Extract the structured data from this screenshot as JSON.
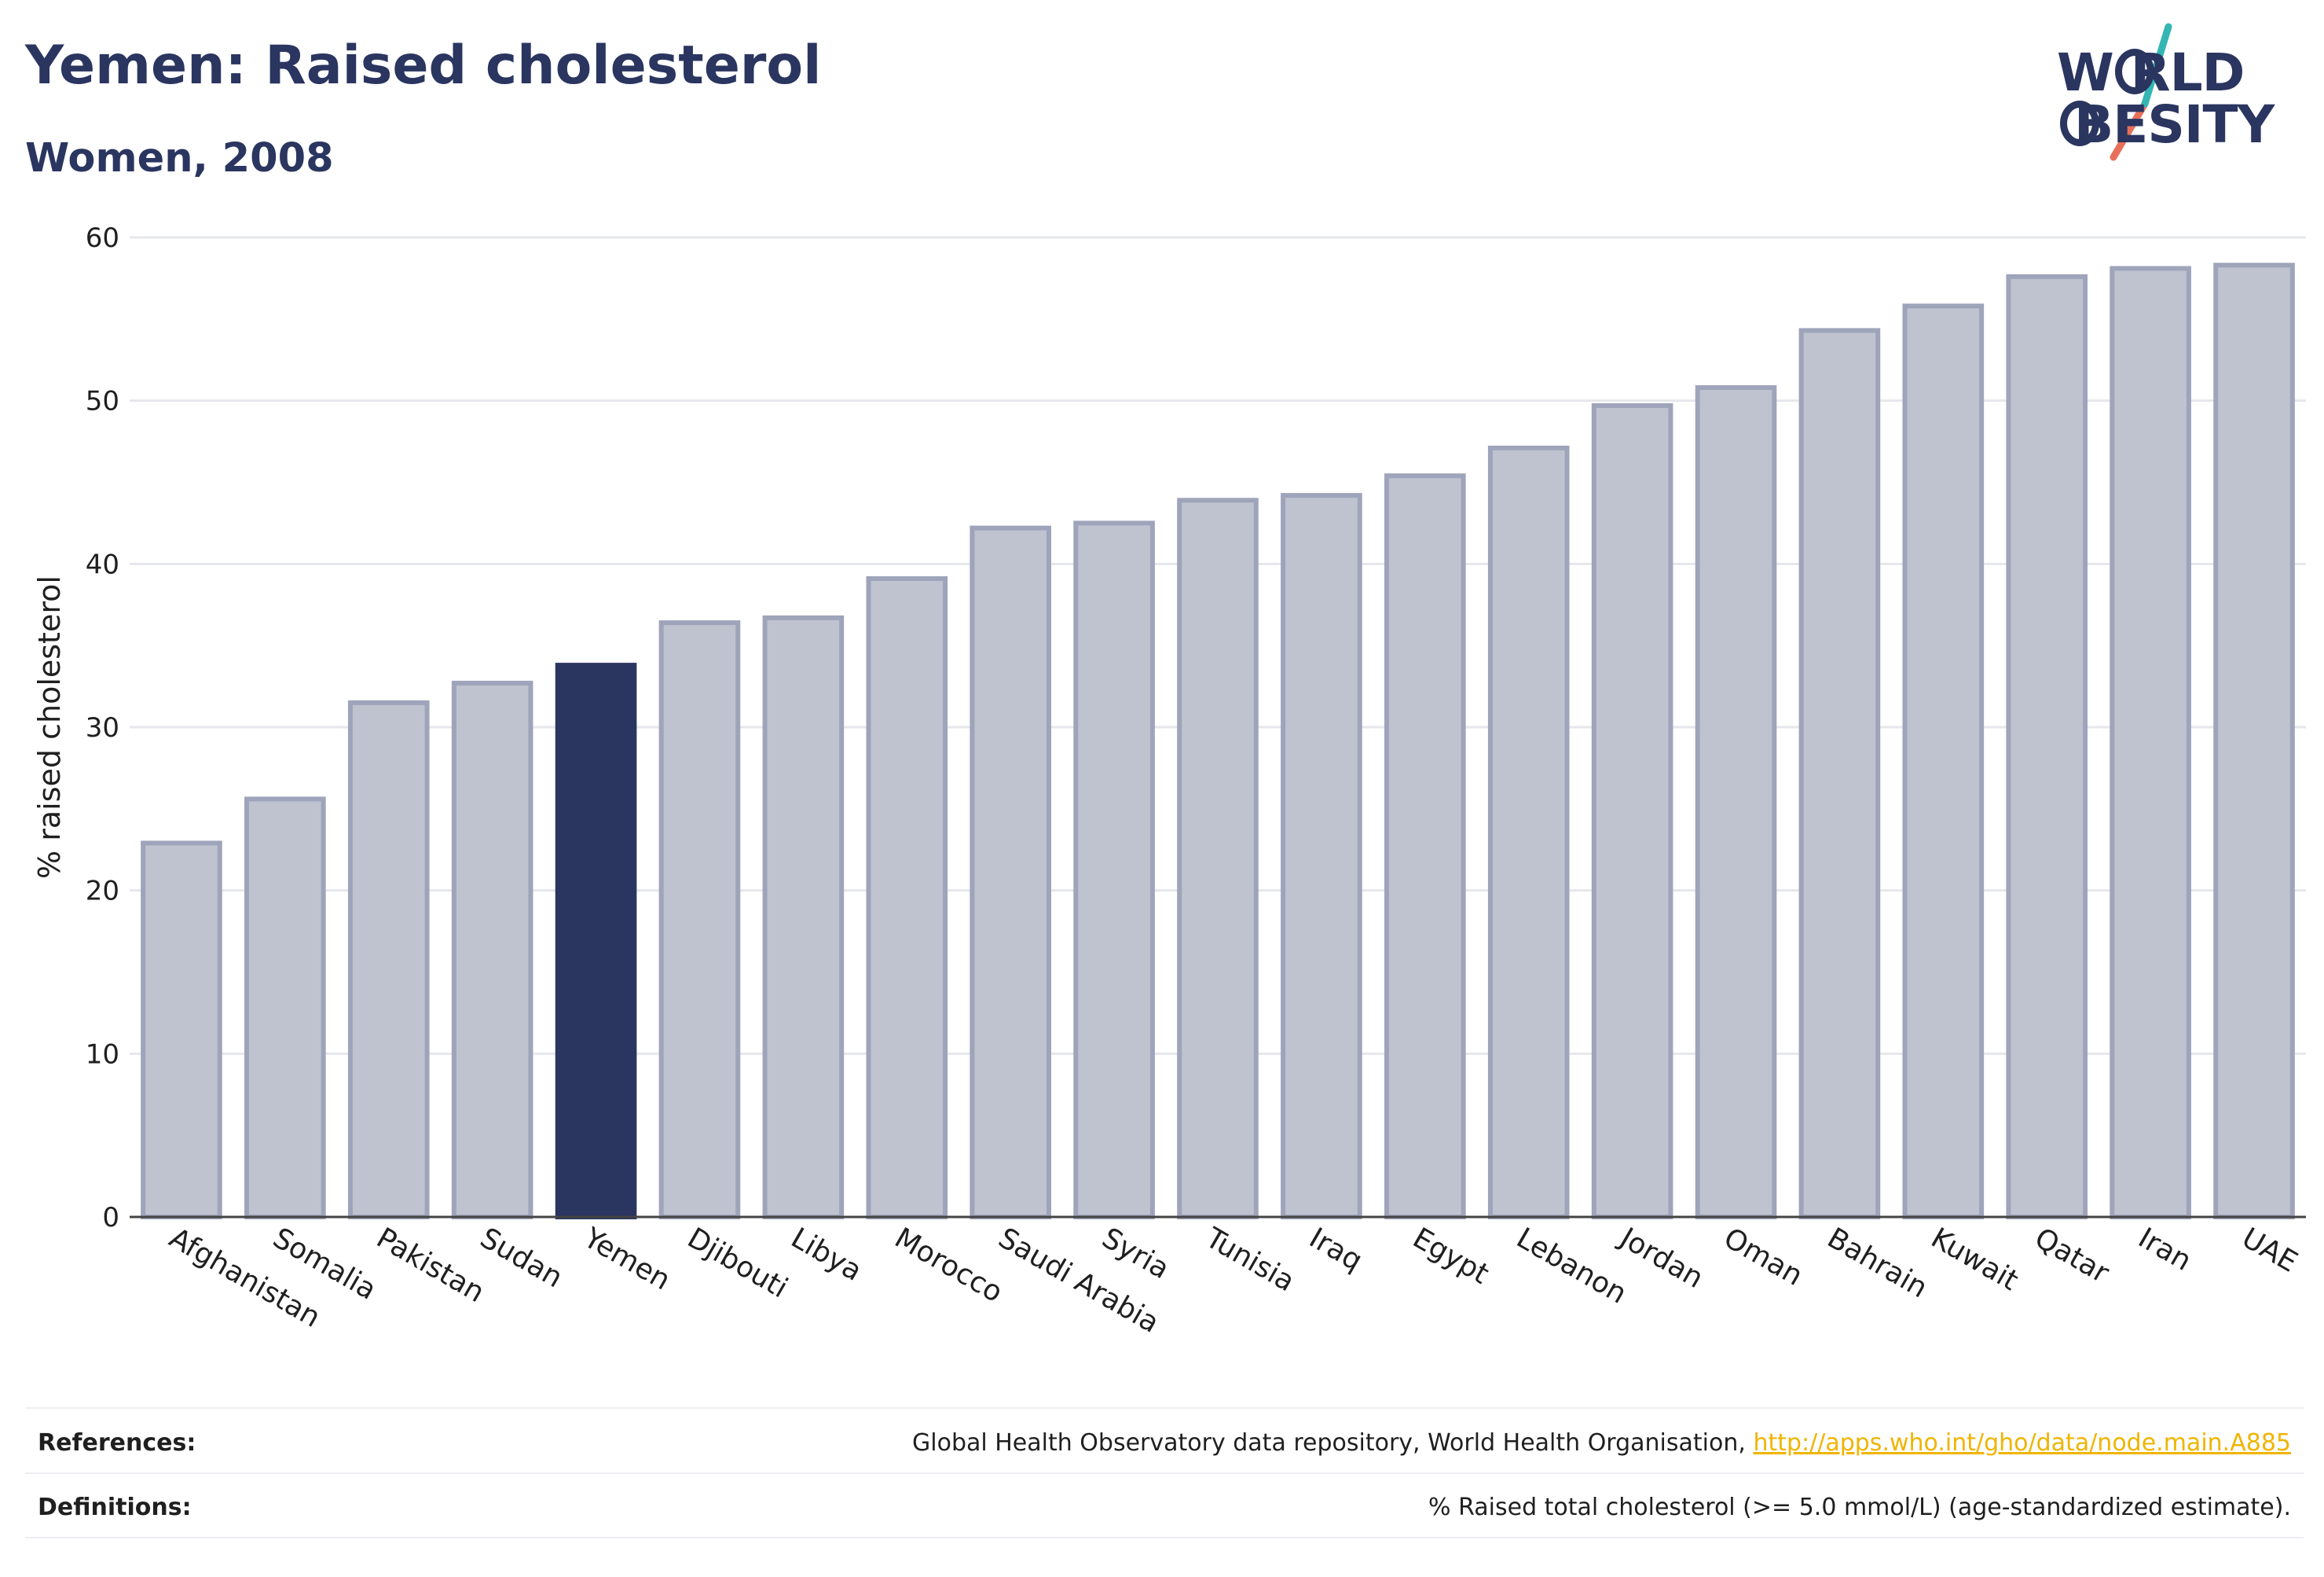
{
  "header": {
    "title": "Yemen: Raised cholesterol",
    "subtitle": "Women, 2008"
  },
  "logo": {
    "line1": "W   RLD",
    "line2": "BESITY",
    "text": "WORLD OBESITY"
  },
  "colors": {
    "title": "#2a3560",
    "bar": "#bfc3d0",
    "bar_stroke": "#9ea4ba",
    "highlight": "#2a3560",
    "grid": "#e6e7ec",
    "link": "#f0b400",
    "logo_teal": "#33b6b4",
    "logo_coral": "#e8705b"
  },
  "chart_data": {
    "type": "bar",
    "title": "Yemen: Raised cholesterol",
    "subtitle": "Women, 2008",
    "xlabel": "",
    "ylabel": "% raised cholesterol",
    "ylim": [
      0,
      60
    ],
    "yticks": [
      0,
      10,
      20,
      30,
      40,
      50,
      60
    ],
    "grid": true,
    "highlight": "Yemen",
    "categories": [
      "Afghanistan",
      "Somalia",
      "Pakistan",
      "Sudan",
      "Yemen",
      "Djibouti",
      "Libya",
      "Morocco",
      "Saudi Arabia",
      "Syria",
      "Tunisia",
      "Iraq",
      "Egypt",
      "Lebanon",
      "Jordan",
      "Oman",
      "Bahrain",
      "Kuwait",
      "Qatar",
      "Iran",
      "UAE"
    ],
    "values": [
      22.9,
      25.6,
      31.5,
      32.7,
      33.8,
      36.4,
      36.7,
      39.1,
      42.2,
      42.5,
      43.9,
      44.2,
      45.4,
      47.1,
      49.7,
      50.8,
      54.3,
      55.8,
      57.6,
      58.1,
      58.3
    ]
  },
  "footer": {
    "references_label": "References:",
    "references_text": "Global Health Observatory data repository, World Health Organisation, ",
    "references_link": "http://apps.who.int/gho/data/node.main.A885",
    "definitions_label": "Definitions:",
    "definitions_text": "% Raised total cholesterol (>= 5.0 mmol/L) (age-standardized estimate)."
  }
}
